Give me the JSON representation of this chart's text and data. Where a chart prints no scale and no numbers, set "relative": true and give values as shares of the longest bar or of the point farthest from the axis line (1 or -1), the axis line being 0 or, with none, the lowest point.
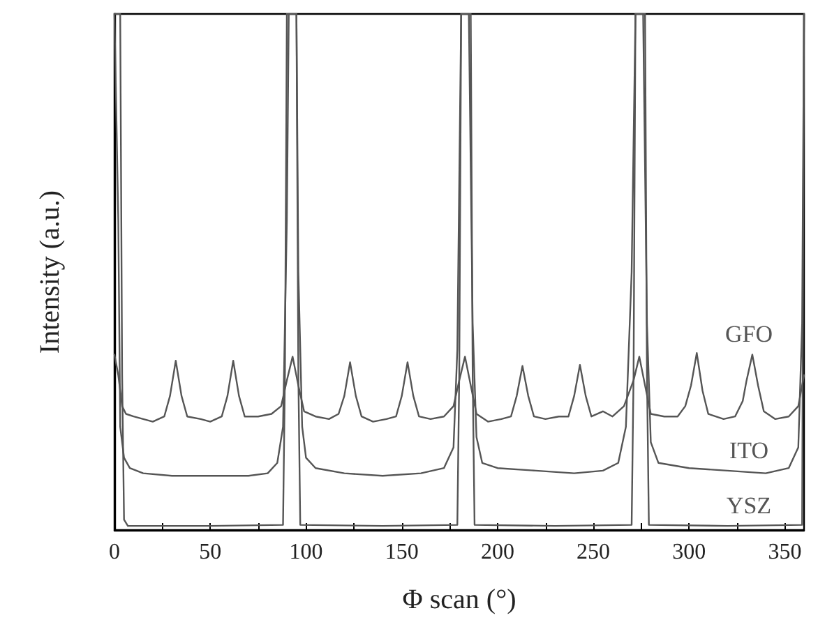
{
  "chart_data": {
    "type": "line",
    "relative": true,
    "xlabel": "Φ scan (°)",
    "ylabel": "Intensity (a.u.)",
    "xlim": [
      0,
      360
    ],
    "xticks": [
      0,
      {
        "value": 25,
        "label": null
      },
      50,
      {
        "value": 75,
        "label": null
      },
      100,
      {
        "value": 125,
        "label": null
      },
      150,
      {
        "value": 175,
        "label": null
      },
      200,
      {
        "value": 225,
        "label": null
      },
      250,
      {
        "value": 275,
        "label": null
      },
      300,
      {
        "value": 325,
        "label": null
      },
      350
    ],
    "marker": "none",
    "line_style": "solid",
    "grid": false,
    "legend": false,
    "series": [
      {
        "name": "GFO",
        "color": "#555555",
        "x": [
          0,
          2,
          4,
          6,
          10,
          15,
          20,
          26,
          29,
          32,
          35,
          38,
          45,
          50,
          56,
          59,
          62,
          65,
          68,
          75,
          82,
          87,
          90,
          93,
          96,
          99,
          105,
          112,
          117,
          120,
          123,
          126,
          129,
          135,
          142,
          147,
          150,
          153,
          156,
          159,
          165,
          172,
          177,
          180,
          183,
          186,
          189,
          195,
          202,
          207,
          210,
          213,
          216,
          219,
          225,
          232,
          237,
          240,
          243,
          246,
          249,
          255,
          260,
          266,
          271,
          274,
          277,
          280,
          287,
          294,
          298,
          301,
          304,
          307,
          310,
          318,
          324,
          328,
          330,
          333,
          336,
          339,
          345,
          352,
          357,
          360
        ],
        "values": [
          0.34,
          0.3,
          0.24,
          0.225,
          0.22,
          0.215,
          0.21,
          0.22,
          0.26,
          0.328,
          0.26,
          0.22,
          0.215,
          0.21,
          0.22,
          0.26,
          0.328,
          0.26,
          0.22,
          0.22,
          0.225,
          0.24,
          0.29,
          0.336,
          0.28,
          0.23,
          0.22,
          0.215,
          0.225,
          0.26,
          0.325,
          0.26,
          0.22,
          0.21,
          0.215,
          0.22,
          0.26,
          0.325,
          0.26,
          0.22,
          0.215,
          0.22,
          0.24,
          0.29,
          0.336,
          0.28,
          0.225,
          0.21,
          0.215,
          0.22,
          0.26,
          0.318,
          0.26,
          0.22,
          0.215,
          0.22,
          0.22,
          0.26,
          0.32,
          0.26,
          0.22,
          0.23,
          0.22,
          0.24,
          0.29,
          0.336,
          0.28,
          0.225,
          0.22,
          0.22,
          0.24,
          0.28,
          0.343,
          0.27,
          0.225,
          0.215,
          0.22,
          0.25,
          0.29,
          0.34,
          0.28,
          0.23,
          0.215,
          0.22,
          0.24,
          0.3
        ]
      },
      {
        "name": "ITO",
        "color": "#555555",
        "x": [
          0,
          2,
          3,
          5,
          8,
          15,
          30,
          50,
          70,
          80,
          85,
          88,
          90,
          91,
          95,
          96,
          98,
          100,
          105,
          120,
          140,
          160,
          172,
          177,
          179,
          181,
          185,
          187,
          189,
          192,
          200,
          220,
          240,
          255,
          263,
          267,
          270,
          272,
          276,
          278,
          280,
          284,
          300,
          320,
          340,
          352,
          357,
          359,
          360
        ],
        "values": [
          1,
          0.6,
          0.2,
          0.14,
          0.12,
          0.11,
          0.105,
          0.105,
          0.105,
          0.11,
          0.13,
          0.2,
          0.6,
          1,
          1,
          0.5,
          0.2,
          0.14,
          0.12,
          0.11,
          0.105,
          0.11,
          0.12,
          0.16,
          0.35,
          1,
          1,
          0.4,
          0.18,
          0.13,
          0.12,
          0.115,
          0.11,
          0.115,
          0.13,
          0.2,
          0.5,
          1,
          1,
          0.4,
          0.17,
          0.13,
          0.12,
          0.115,
          0.11,
          0.12,
          0.16,
          0.4,
          1
        ]
      },
      {
        "name": "YSZ",
        "color": "#555555",
        "x": [
          0,
          3,
          4,
          5,
          7,
          50,
          88,
          89,
          90,
          95,
          96,
          97,
          140,
          179,
          180,
          181,
          186,
          187,
          188,
          230,
          270,
          271,
          272,
          277,
          278,
          279,
          320,
          359,
          360
        ],
        "values": [
          1,
          1,
          0.3,
          0.02,
          0.008,
          0.008,
          0.01,
          0.3,
          1,
          1,
          0.3,
          0.01,
          0.008,
          0.01,
          0.3,
          1,
          1,
          0.3,
          0.01,
          0.008,
          0.01,
          0.3,
          1,
          1,
          0.3,
          0.01,
          0.008,
          0.01,
          1
        ]
      }
    ]
  }
}
